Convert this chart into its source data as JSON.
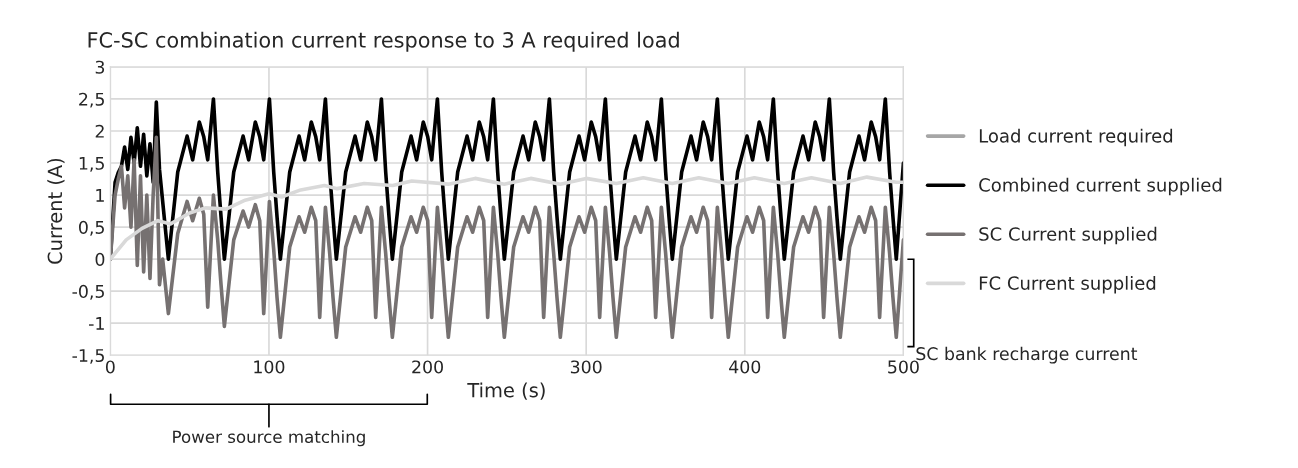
{
  "chart_data": {
    "type": "line",
    "title": "FC-SC combination current response to 3 A required load",
    "xlabel": "Time (s)",
    "ylabel": "Current (A)",
    "xlim": [
      0,
      500
    ],
    "xticks": [
      0,
      100,
      200,
      300,
      400,
      500
    ],
    "ylim": [
      -1.5,
      3
    ],
    "yticks": [
      {
        "value": -1.5,
        "label": "-1,5"
      },
      {
        "value": -1,
        "label": "-1"
      },
      {
        "value": -0.5,
        "label": "-0,5"
      },
      0,
      {
        "value": 0.5,
        "label": "0,5"
      },
      1,
      {
        "value": 1.5,
        "label": "1,5"
      },
      2,
      {
        "value": 2.5,
        "label": "2,5"
      },
      3
    ],
    "grid": true,
    "legend": "right",
    "line_style": "solid",
    "marker": "none",
    "annotations": [
      "SC bank recharge current",
      "Power source matching"
    ],
    "series": [
      {
        "name": "Load current required",
        "color": "#a6a6a6"
      },
      {
        "name": "Combined current supplied",
        "color": "#000000",
        "x": [
          0,
          3,
          5,
          7,
          9,
          11,
          13,
          15,
          17,
          19,
          21,
          23,
          25,
          27,
          29,
          31,
          33,
          36.6,
          42.5,
          48.4,
          51.9,
          56.1,
          58.9,
          61.4,
          65.0,
          67.7,
          69.8,
          71.9,
          77.8,
          83.7,
          87.2,
          91.4,
          94.2,
          96.7,
          100.3,
          103.0,
          105.1,
          107.2,
          113.1,
          119.0,
          122.5,
          126.7,
          129.5,
          132.0,
          135.6,
          138.3,
          140.4,
          142.5,
          148.4,
          154.3,
          157.8,
          162.0,
          164.8,
          167.3,
          170.9,
          173.6,
          175.7,
          177.8,
          183.7,
          189.6,
          193.1,
          197.3,
          200.1,
          202.6,
          206.2,
          208.9,
          211.0,
          213.1,
          219.0,
          224.9,
          228.4,
          232.6,
          235.4,
          237.9,
          241.5,
          244.2,
          246.3,
          248.4,
          254.3,
          260.2,
          263.7,
          267.9,
          270.7,
          273.2,
          276.8,
          279.5,
          281.6,
          283.7,
          289.6,
          295.5,
          299.0,
          303.2,
          306.0,
          308.5,
          312.1,
          314.8,
          316.9,
          319.0,
          324.9,
          330.8,
          334.3,
          338.5,
          341.3,
          343.8,
          347.4,
          350.1,
          352.2,
          354.3,
          360.2,
          366.1,
          369.6,
          373.8,
          376.6,
          379.1,
          382.7,
          385.4,
          387.5,
          389.6,
          395.5,
          401.4,
          404.9,
          409.1,
          411.9,
          414.4,
          418.0,
          420.7,
          422.8,
          424.9,
          430.8,
          436.7,
          440.2,
          444.4,
          447.2,
          449.7,
          453.3,
          456.0,
          458.1,
          460.2,
          466.1,
          472.0,
          475.5,
          479.7,
          482.5,
          485.0,
          488.6,
          491.3,
          493.4,
          495.5,
          500
        ],
        "values": [
          0,
          1.2,
          1.35,
          1.45,
          1.75,
          1.4,
          1.9,
          1.5,
          2.05,
          1.45,
          1.95,
          1.3,
          1.8,
          1.2,
          2.45,
          1.4,
          0.9,
          0,
          1.36,
          1.92,
          1.55,
          2.14,
          1.91,
          1.55,
          2.5,
          1.36,
          0.66,
          0,
          1.36,
          1.92,
          1.55,
          2.14,
          1.91,
          1.55,
          2.5,
          1.36,
          0.66,
          0,
          1.36,
          1.92,
          1.55,
          2.14,
          1.91,
          1.55,
          2.5,
          1.36,
          0.66,
          0,
          1.36,
          1.92,
          1.55,
          2.14,
          1.91,
          1.55,
          2.5,
          1.36,
          0.66,
          0,
          1.36,
          1.92,
          1.55,
          2.14,
          1.91,
          1.55,
          2.5,
          1.36,
          0.66,
          0,
          1.36,
          1.92,
          1.55,
          2.14,
          1.91,
          1.55,
          2.5,
          1.36,
          0.66,
          0,
          1.36,
          1.92,
          1.55,
          2.14,
          1.91,
          1.55,
          2.5,
          1.36,
          0.66,
          0,
          1.36,
          1.92,
          1.55,
          2.14,
          1.91,
          1.55,
          2.5,
          1.36,
          0.66,
          0,
          1.36,
          1.92,
          1.55,
          2.14,
          1.91,
          1.55,
          2.5,
          1.36,
          0.66,
          0,
          1.36,
          1.92,
          1.55,
          2.14,
          1.91,
          1.55,
          2.5,
          1.36,
          0.66,
          0,
          1.36,
          1.92,
          1.55,
          2.14,
          1.91,
          1.55,
          2.5,
          1.36,
          0.66,
          0,
          1.36,
          1.92,
          1.55,
          2.14,
          1.91,
          1.55,
          2.5,
          1.36,
          0.66,
          0,
          1.36,
          1.92,
          1.55,
          2.14,
          1.91,
          1.55,
          2.5,
          1.36,
          0.66,
          0,
          1.5
        ]
      },
      {
        "name": "SC Current supplied",
        "color": "#767171",
        "x": [
          0,
          3,
          5,
          7,
          9,
          11,
          13,
          15,
          17,
          19,
          21,
          23,
          25,
          27,
          29,
          31,
          33,
          36.6,
          42.5,
          48.4,
          51.9,
          56.1,
          58.9,
          61.4,
          65.0,
          67.7,
          69.8,
          71.9,
          77.8,
          83.7,
          87.2,
          91.4,
          94.2,
          96.7,
          100.3,
          103.0,
          105.1,
          107.2,
          113.1,
          119.0,
          122.5,
          126.7,
          129.5,
          132.0,
          135.6,
          138.3,
          140.4,
          142.5,
          148.4,
          154.3,
          157.8,
          162.0,
          164.8,
          167.3,
          170.9,
          173.6,
          175.7,
          177.8,
          183.7,
          189.6,
          193.1,
          197.3,
          200.1,
          202.6,
          206.2,
          208.9,
          211.0,
          213.1,
          219.0,
          224.9,
          228.4,
          232.6,
          235.4,
          237.9,
          241.5,
          244.2,
          246.3,
          248.4,
          254.3,
          260.2,
          263.7,
          267.9,
          270.7,
          273.2,
          276.8,
          279.5,
          281.6,
          283.7,
          289.6,
          295.5,
          299.0,
          303.2,
          306.0,
          308.5,
          312.1,
          314.8,
          316.9,
          319.0,
          324.9,
          330.8,
          334.3,
          338.5,
          341.3,
          343.8,
          347.4,
          350.1,
          352.2,
          354.3,
          360.2,
          366.1,
          369.6,
          373.8,
          376.6,
          379.1,
          382.7,
          385.4,
          387.5,
          389.6,
          395.5,
          401.4,
          404.9,
          409.1,
          411.9,
          414.4,
          418.0,
          420.7,
          422.8,
          424.9,
          430.8,
          436.7,
          440.2,
          444.4,
          447.2,
          449.7,
          453.3,
          456.0,
          458.1,
          460.2,
          466.1,
          472.0,
          475.5,
          479.7,
          482.5,
          485.0,
          488.6,
          491.3,
          493.4,
          495.5,
          500
        ],
        "values": [
          0,
          1.0,
          1.25,
          1.45,
          0.8,
          1.3,
          0.5,
          1.55,
          -0.1,
          1.3,
          -0.2,
          1.0,
          -0.3,
          1.0,
          1.9,
          -0.4,
          0.0,
          -0.85,
          0.4,
          0.9,
          0.6,
          0.95,
          0.7,
          -0.75,
          1.0,
          0.3,
          -0.4,
          -1.05,
          0.3,
          0.75,
          0.5,
          0.85,
          0.6,
          -0.85,
          0.9,
          0.15,
          -0.6,
          -1.22,
          0.19,
          0.66,
          0.42,
          0.81,
          0.6,
          -0.91,
          0.81,
          0.09,
          -0.6,
          -1.22,
          0.19,
          0.66,
          0.42,
          0.81,
          0.6,
          -0.91,
          0.81,
          0.09,
          -0.6,
          -1.22,
          0.19,
          0.66,
          0.42,
          0.81,
          0.6,
          -0.91,
          0.81,
          0.09,
          -0.6,
          -1.22,
          0.19,
          0.66,
          0.42,
          0.81,
          0.6,
          -0.91,
          0.81,
          0.09,
          -0.6,
          -1.22,
          0.19,
          0.66,
          0.42,
          0.81,
          0.6,
          -0.91,
          0.81,
          0.09,
          -0.6,
          -1.22,
          0.19,
          0.66,
          0.42,
          0.81,
          0.6,
          -0.91,
          0.81,
          0.09,
          -0.6,
          -1.22,
          0.19,
          0.66,
          0.42,
          0.81,
          0.6,
          -0.91,
          0.81,
          0.09,
          -0.6,
          -1.22,
          0.19,
          0.66,
          0.42,
          0.81,
          0.6,
          -0.91,
          0.81,
          0.09,
          -0.6,
          -1.22,
          0.19,
          0.66,
          0.42,
          0.81,
          0.6,
          -0.91,
          0.81,
          0.09,
          -0.6,
          -1.22,
          0.19,
          0.66,
          0.42,
          0.81,
          0.6,
          -0.91,
          0.81,
          0.09,
          -0.6,
          -1.22,
          0.19,
          0.66,
          0.42,
          0.81,
          0.6,
          -0.91,
          0.81,
          0.09,
          -0.6,
          -1.22,
          0.3
        ]
      },
      {
        "name": "FC Current supplied",
        "color": "#d9d9d9",
        "x": [
          0,
          10,
          20,
          30,
          38,
          50,
          60,
          73,
          85,
          100,
          108,
          120,
          135,
          143,
          160,
          178,
          190,
          213.1,
          230,
          248.4,
          265,
          283.7,
          300,
          319,
          336,
          354.3,
          371,
          389.6,
          406,
          424.9,
          442,
          460.2,
          477,
          495.5,
          500
        ],
        "values": [
          0,
          0.3,
          0.48,
          0.6,
          0.55,
          0.72,
          0.8,
          0.78,
          0.92,
          1.02,
          0.97,
          1.08,
          1.15,
          1.1,
          1.18,
          1.15,
          1.22,
          1.17,
          1.26,
          1.17,
          1.26,
          1.17,
          1.26,
          1.18,
          1.27,
          1.18,
          1.27,
          1.18,
          1.27,
          1.18,
          1.27,
          1.18,
          1.28,
          1.2,
          1.2
        ]
      }
    ]
  }
}
